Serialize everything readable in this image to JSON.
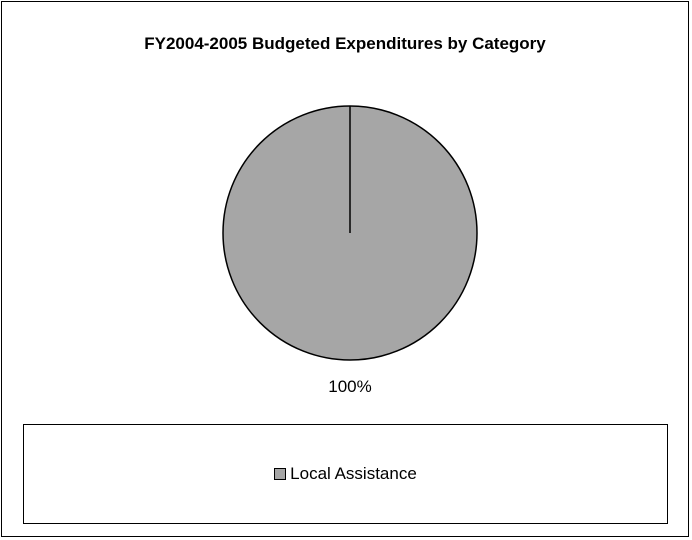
{
  "chart_data": {
    "type": "pie",
    "title": "FY2004-2005 Budgeted Expenditures by Category",
    "slices": [
      {
        "label": "Local Assistance",
        "value": 100,
        "percent_label": "100%",
        "color": "#a6a6a6"
      }
    ],
    "legend": {
      "placement": "bottom",
      "entries": [
        "Local Assistance"
      ]
    }
  }
}
